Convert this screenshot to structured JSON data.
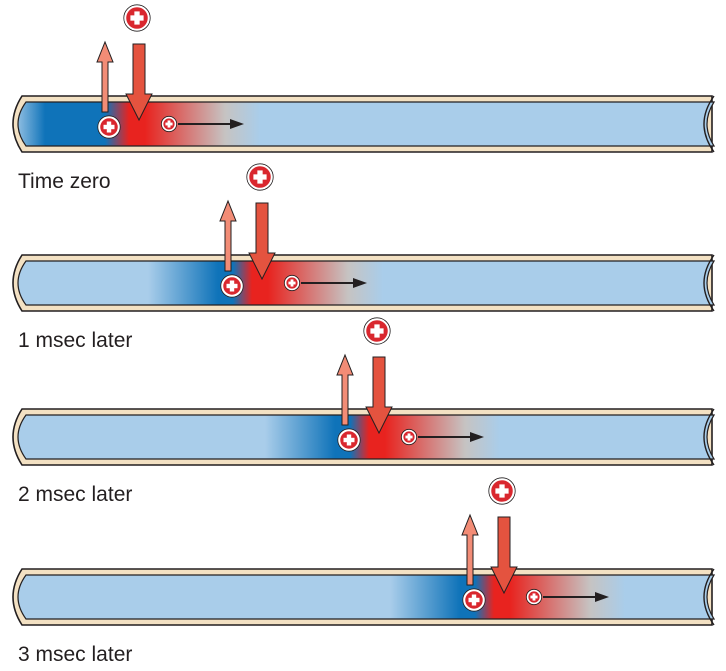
{
  "panels": [
    {
      "label": "Time zero"
    },
    {
      "label": "1 msec later"
    },
    {
      "label": "2 msec later"
    },
    {
      "label": "3 msec later"
    }
  ],
  "colors": {
    "axon_light": "#a9cdea",
    "axon_dark": "#0f73b9",
    "depolarized_red": "#e8231f",
    "decay_grey": "#c6c3c2",
    "tube_wall": "#f3e1c3",
    "efflux_arrow": "#f28c76",
    "influx_arrow": "#e4533f",
    "charge": "#d9272e",
    "current_arrow": "#231f20"
  },
  "icons": {
    "positive_ion": "plus-ion-icon",
    "current_direction": "right-arrow-icon"
  }
}
